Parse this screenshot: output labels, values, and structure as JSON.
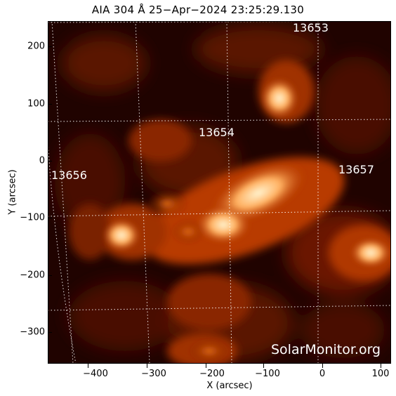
{
  "title": "AIA 304 Å 25−Apr−2024 23:25:29.130",
  "colors": {
    "background_dark": "#1a0000",
    "emission_mid": "#b83a00",
    "emission_bright": "#ffe6a0",
    "grid": "#ffffff"
  },
  "axes": {
    "x_label": "X (arcsec)",
    "y_label": "Y (arcsec)",
    "x_ticks": [
      "−400",
      "−300",
      "−200",
      "−100",
      "0",
      "100"
    ],
    "y_ticks": [
      "200",
      "100",
      "0",
      "−100",
      "−200",
      "−300"
    ]
  },
  "regions": [
    {
      "id": "13653",
      "label": "13653"
    },
    {
      "id": "13654",
      "label": "13654"
    },
    {
      "id": "13656",
      "label": "13656"
    },
    {
      "id": "13657",
      "label": "13657"
    }
  ],
  "watermark": "SolarMonitor.org"
}
